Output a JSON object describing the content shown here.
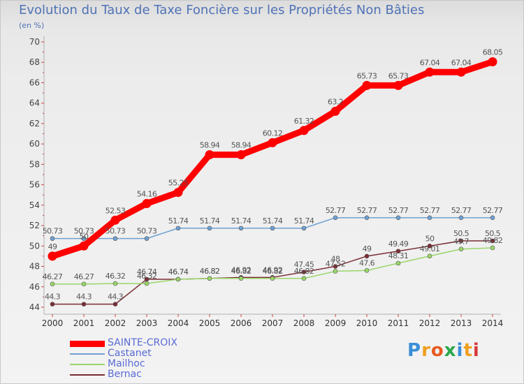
{
  "title": "Evolution du Taux de Taxe Foncière sur les Propriétés Non Bâties",
  "unit_label": "(en %)",
  "logo_text": "Proxiti",
  "chart_data": {
    "type": "line",
    "x": [
      "2000",
      "2001",
      "2002",
      "2003",
      "2004",
      "2005",
      "2006",
      "2007",
      "2008",
      "2009",
      "2010",
      "2011",
      "2012",
      "2013",
      "2014"
    ],
    "ylim": [
      44,
      70
    ],
    "yticks": [
      44,
      46,
      48,
      50,
      52,
      54,
      56,
      58,
      60,
      62,
      64,
      66,
      68,
      70
    ],
    "grid": false,
    "legend_position": "bottom-left",
    "series": [
      {
        "name": "SAINTE-CROIX",
        "color": "#ff0000",
        "values": [
          49,
          50,
          52.53,
          54.16,
          55.25,
          58.94,
          58.94,
          60.12,
          61.32,
          63.2,
          65.73,
          65.73,
          67.04,
          67.04,
          68.05
        ],
        "labels": [
          "49",
          "50",
          "52.53",
          "54.16",
          "55.25",
          "58.94",
          "58.94",
          "60.12",
          "61.32",
          "63.2",
          "65.73",
          "65.73",
          "67.04",
          "67.04",
          "68.05"
        ]
      },
      {
        "name": "Castanet",
        "color": "#6fa0d0",
        "values": [
          50.73,
          50.73,
          50.73,
          50.73,
          51.74,
          51.74,
          51.74,
          51.74,
          51.74,
          52.77,
          52.77,
          52.77,
          52.77,
          52.77,
          52.77
        ],
        "labels": [
          "50.73",
          "50.73",
          "50.73",
          "50.73",
          "51.74",
          "51.74",
          "51.74",
          "51.74",
          "51.74",
          "52.77",
          "52.77",
          "52.77",
          "52.77",
          "52.77",
          "52.77"
        ]
      },
      {
        "name": "Mailhoc",
        "color": "#9ad66a",
        "values": [
          46.27,
          46.27,
          46.32,
          46.32,
          46.74,
          46.82,
          46.82,
          46.82,
          46.82,
          47.52,
          47.6,
          48.31,
          49.01,
          49.7,
          49.82
        ],
        "labels": [
          "46.27",
          "46.27",
          "46.32",
          "46.32",
          "46.74",
          "46.82",
          "46.82",
          "46.82",
          "46.82",
          "47.52",
          "47.6",
          "48.31",
          "49.01",
          "49.7",
          "49.82"
        ]
      },
      {
        "name": "Bernac",
        "color": "#7a2e34",
        "values": [
          44.3,
          44.3,
          44.3,
          46.74,
          46.74,
          46.82,
          46.92,
          46.92,
          47.45,
          48,
          49,
          49.49,
          50,
          50.5,
          50.5
        ],
        "labels": [
          "44.3",
          "44.3",
          "44.3",
          "46.74",
          "46.74",
          "46.82",
          "46.92",
          "46.92",
          "47.45",
          "48",
          "49",
          "49.49",
          "50",
          "50.5",
          "50.5"
        ]
      }
    ]
  }
}
